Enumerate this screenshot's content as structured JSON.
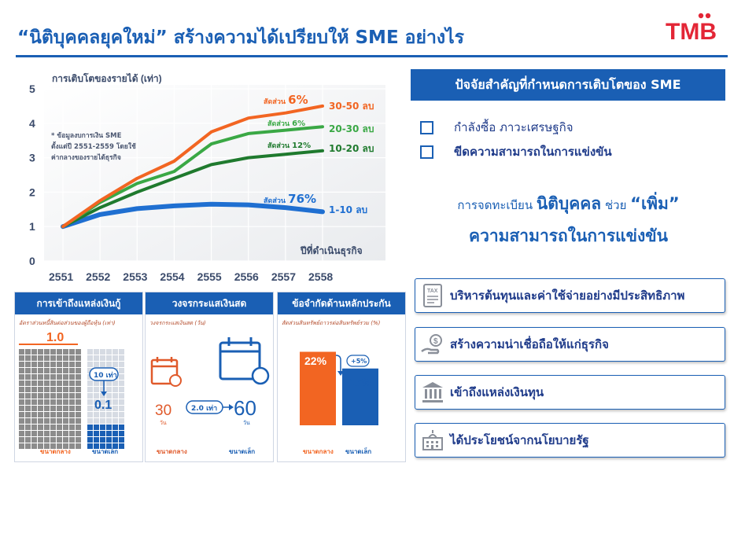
{
  "title": "“นิติบุคคลยุคใหม่” สร้างความได้เปรียบให้ SME อย่างไร",
  "logo": "TMB",
  "colors": {
    "brand_blue": "#1a5fb4",
    "orange": "#f26522",
    "green": "#3aa845",
    "dark_green": "#1f7a2e",
    "blue_line": "#1f6fd1",
    "logo_red": "#e32636"
  },
  "chart_data": {
    "type": "line",
    "title": "การเติบโตของรายได้ (เท่า)",
    "xlabel": "ปีที่ดำเนินธุรกิจ",
    "ylabel": "",
    "x": [
      "2551",
      "2552",
      "2553",
      "2554",
      "2555",
      "2556",
      "2557",
      "2558"
    ],
    "ylim": [
      0,
      5
    ],
    "yticks": [
      "0",
      "1",
      "2",
      "3",
      "4",
      "5"
    ],
    "grid": true,
    "note_lines": [
      "* ข้อมูลงบการเงิน SME",
      "ตั้งแต่ปี 2551-2559 โดยใช้",
      "ค่ากลางของรายได้ธุรกิจ"
    ],
    "series": [
      {
        "name": "30-50 ลบ",
        "share_label": "สัดส่วน",
        "share": "6%",
        "color": "#f26522",
        "values": [
          1.0,
          1.75,
          2.4,
          2.9,
          3.75,
          4.15,
          4.3,
          4.5
        ]
      },
      {
        "name": "20-30 ลบ",
        "share_label": "สัดส่วน",
        "share": "6%",
        "color": "#3aa845",
        "values": [
          1.0,
          1.7,
          2.25,
          2.6,
          3.4,
          3.7,
          3.8,
          3.9
        ]
      },
      {
        "name": "10-20 ลบ",
        "share_label": "สัดส่วน",
        "share": "12%",
        "color": "#1f7a2e",
        "values": [
          1.0,
          1.55,
          2.0,
          2.4,
          2.8,
          3.0,
          3.1,
          3.2
        ]
      },
      {
        "name": "1-10 ลบ",
        "share_label": "สัดส่วน",
        "share": "76%",
        "color": "#1f6fd1",
        "values": [
          1.0,
          1.35,
          1.52,
          1.6,
          1.65,
          1.63,
          1.55,
          1.43
        ]
      }
    ]
  },
  "factors": {
    "header": "ปัจจัยสำคัญที่กำหนดการเติบโตของ SME",
    "items": [
      "กำลังซื้อ ภาวะเศรษฐกิจ",
      "ขีดความสามารถในการแข่งขัน"
    ]
  },
  "lead": {
    "prefix": "การจดทะเบียน",
    "entity": "นิติบุคคล",
    "mid": "ช่วย",
    "boost": "“เพิ่ม”",
    "line2": "ความสามารถในการแข่งขัน"
  },
  "benefits": [
    {
      "icon": "tax-document-icon",
      "label": "บริหารต้นทุนและค่าใช้จ่ายอย่างมีประสิทธิภาพ"
    },
    {
      "icon": "hand-coin-icon",
      "label": "สร้างความน่าเชื่อถือให้แก่ธุรกิจ"
    },
    {
      "icon": "bank-icon",
      "label": "เข้าถึงแหล่งเงินทุน"
    },
    {
      "icon": "government-building-icon",
      "label": "ได้ประโยชน์จากนโยบายรัฐ"
    }
  ],
  "panels": {
    "funding": {
      "header": "การเข้าถึงแหล่งเงินกู้",
      "subtitle": "อัตราส่วนหนี้สินต่อส่วนของผู้ถือหุ้น (เท่า)",
      "medium_value": "1.0",
      "multiplier": "10 เท่า",
      "small_value": "0.1",
      "medium_label": "ขนาดกลาง",
      "small_label": "ขนาดเล็ก"
    },
    "cashcycle": {
      "header": "วงจรกระแสเงินสด",
      "subtitle": "วงจรกระแสเงินสด (วัน)",
      "medium_value": "30",
      "multiplier": "2.0 เท่า",
      "small_value": "60",
      "unit": "วัน",
      "medium_label": "ขนาดกลาง",
      "small_label": "ขนาดเล็ก"
    },
    "collateral": {
      "header": "ข้อจำกัดด้านหลักประกัน",
      "subtitle": "สัดส่วนสินทรัพย์ถาวรต่อสินทรัพย์รวม (%)",
      "medium_value": "22%",
      "diff": "+5%",
      "small_value": "17%",
      "medium_fraction": 0.22,
      "small_fraction": 0.17,
      "medium_label": "ขนาดกลาง",
      "small_label": "ขนาดเล็ก"
    }
  }
}
